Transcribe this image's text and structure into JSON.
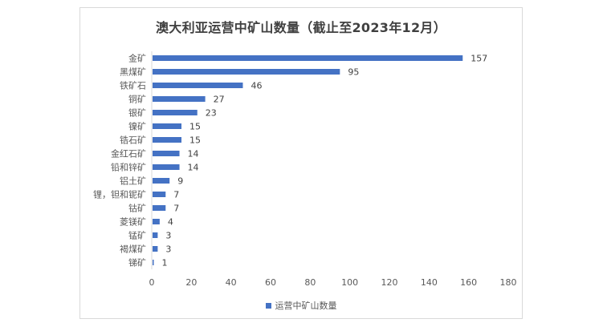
{
  "chart_data": {
    "type": "bar",
    "orientation": "horizontal",
    "title": "澳大利亚运营中矿山数量（截止至2023年12月）",
    "categories": [
      "金矿",
      "黑煤矿",
      "铁矿石",
      "铜矿",
      "银矿",
      "镍矿",
      "锆石矿",
      "金红石矿",
      "铅和锌矿",
      "铝土矿",
      "锂，钽和铌矿",
      "钴矿",
      "菱镁矿",
      "锰矿",
      "褐煤矿",
      "锑矿"
    ],
    "series": [
      {
        "name": "运营中矿山数量",
        "values": [
          157,
          95,
          46,
          27,
          23,
          15,
          15,
          14,
          14,
          9,
          7,
          7,
          4,
          3,
          3,
          1
        ]
      }
    ],
    "xlim": [
      0,
      180
    ],
    "x_ticks": [
      0,
      20,
      40,
      60,
      80,
      100,
      120,
      140,
      160,
      180
    ],
    "grid": false,
    "data_labels": true,
    "legend": "bottom",
    "bar_color": "#4472c4",
    "text_color": "#595959",
    "axis_color": "#d9d9d9"
  }
}
